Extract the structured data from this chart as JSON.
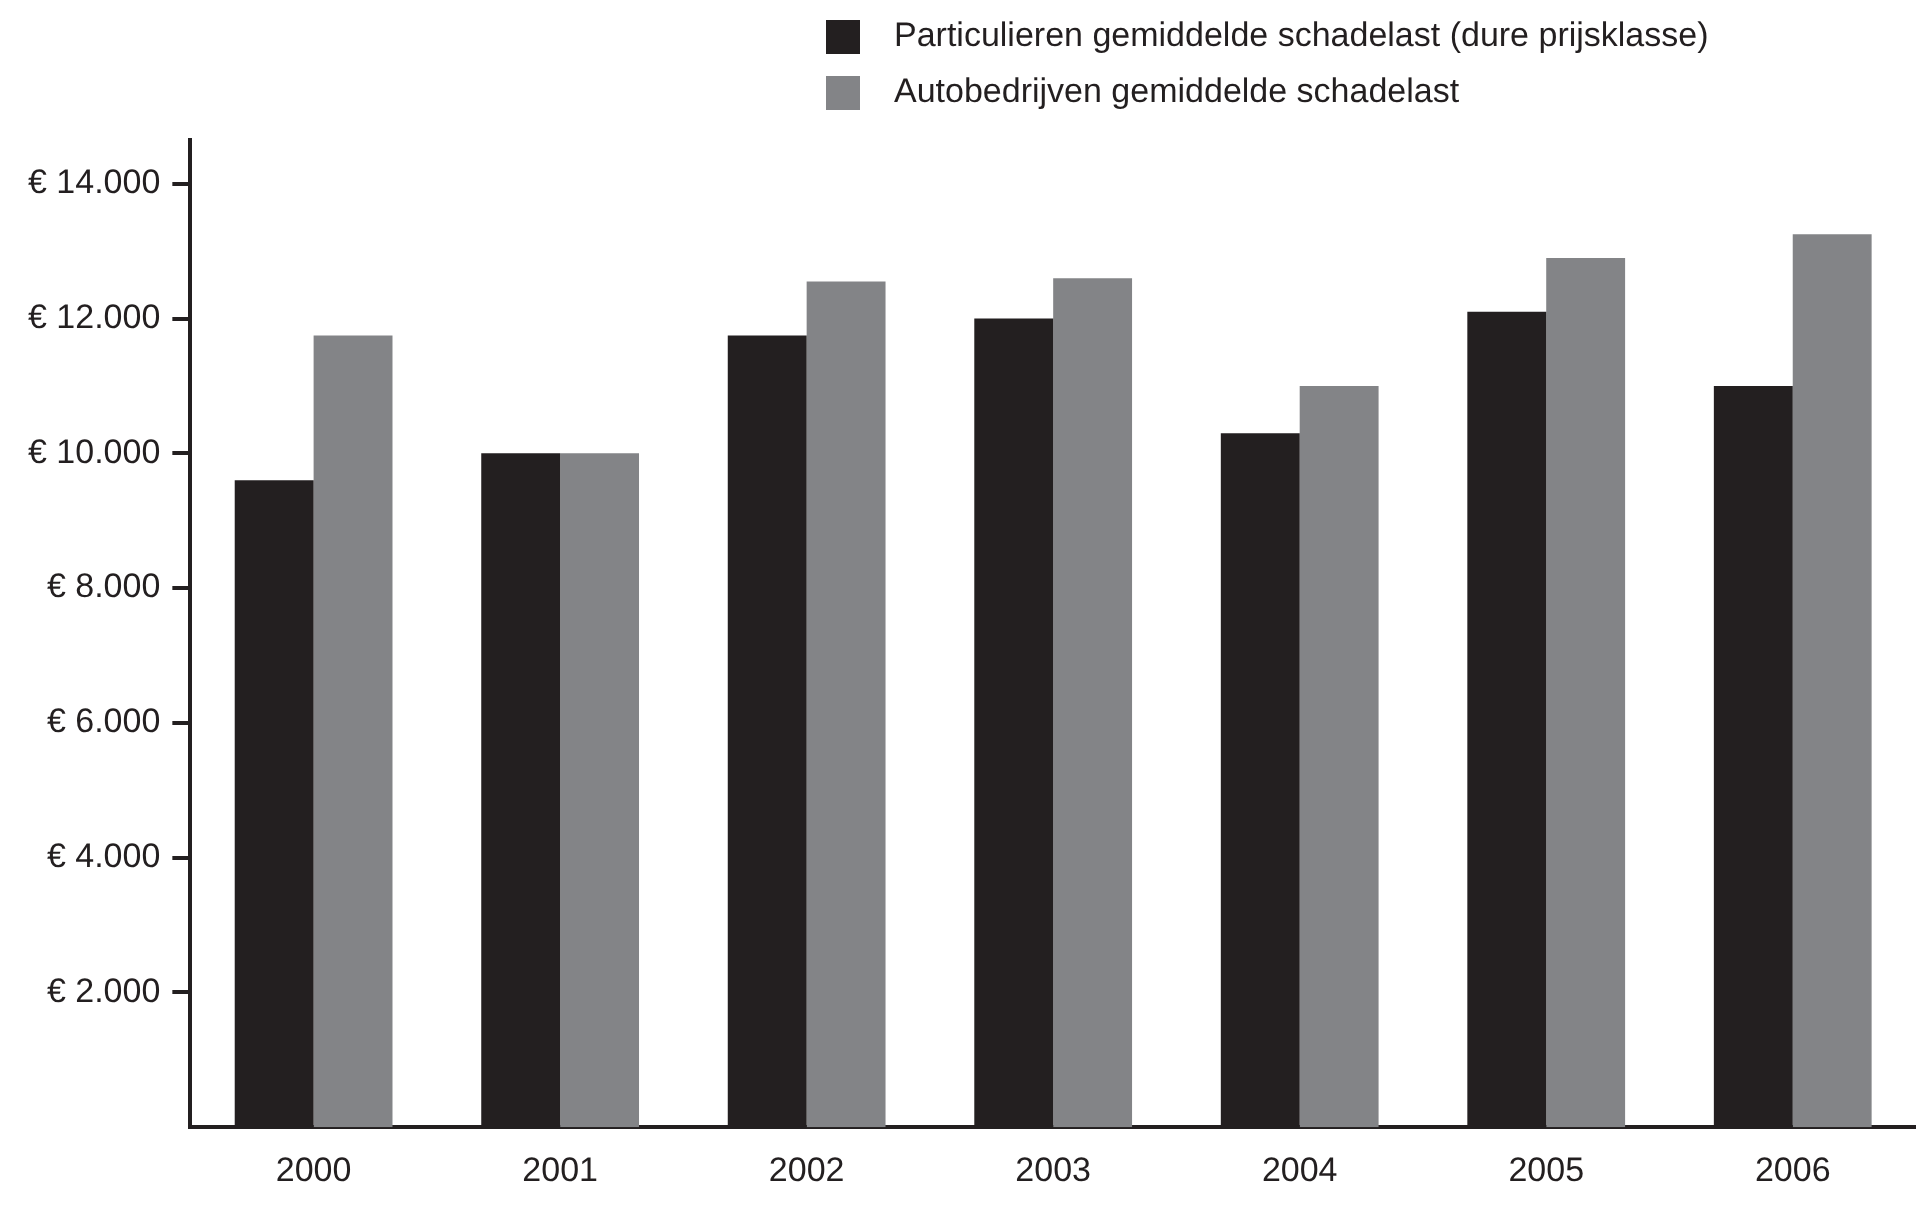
{
  "chart_data": {
    "type": "bar",
    "categories": [
      "2000",
      "2001",
      "2002",
      "2003",
      "2004",
      "2005",
      "2006"
    ],
    "series": [
      {
        "name": "Particulieren gemiddelde schadelast (dure prijsklasse)",
        "color": "#231f20",
        "values": [
          9600,
          10000,
          11750,
          12000,
          10300,
          12100,
          11000
        ]
      },
      {
        "name": "Autobedrijven gemiddelde schadelast",
        "color": "#838487",
        "values": [
          11750,
          10000,
          12550,
          12600,
          11000,
          12900,
          13250
        ]
      }
    ],
    "ylim": [
      0,
      14650
    ],
    "yticks": [
      {
        "value": 2000,
        "label": "€ 2.000"
      },
      {
        "value": 4000,
        "label": "€ 4.000"
      },
      {
        "value": 6000,
        "label": "€ 6.000"
      },
      {
        "value": 8000,
        "label": "€ 8.000"
      },
      {
        "value": 10000,
        "label": "€ 10.000"
      },
      {
        "value": 12000,
        "label": "€ 12.000"
      },
      {
        "value": 14000,
        "label": "€ 14.000"
      }
    ],
    "grid": false,
    "legend": "top right"
  }
}
